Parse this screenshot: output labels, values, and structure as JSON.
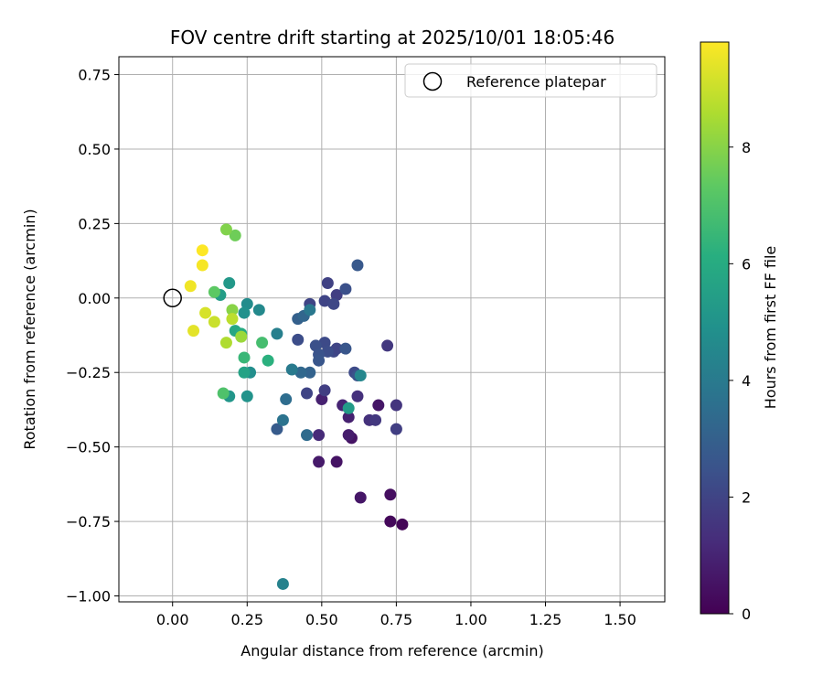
{
  "chart_data": {
    "type": "scatter",
    "title": "FOV centre drift starting at 2025/10/01 18:05:46",
    "xlabel": "Angular distance from reference (arcmin)",
    "ylabel": "Rotation from reference (arcmin)",
    "xlim": [
      -0.18,
      1.65
    ],
    "ylim": [
      -1.02,
      0.81
    ],
    "xticks": [
      0.0,
      0.25,
      0.5,
      0.75,
      1.0,
      1.25,
      1.5
    ],
    "xtick_labels": [
      "0.00",
      "0.25",
      "0.50",
      "0.75",
      "1.00",
      "1.25",
      "1.50"
    ],
    "yticks": [
      0.75,
      0.5,
      0.25,
      0.0,
      -0.25,
      -0.5,
      -0.75,
      -1.0
    ],
    "ytick_labels": [
      "0.75",
      "0.50",
      "0.25",
      "0.00",
      "−0.25",
      "−0.50",
      "−0.75",
      "−1.00"
    ],
    "grid": true,
    "legend": {
      "label": "Reference platepar",
      "placement": "top-right"
    },
    "reference_point": {
      "x": 0.0,
      "y": 0.0
    },
    "colorbar": {
      "label": "Hours from first FF file",
      "range": [
        0,
        9.8
      ],
      "ticks": [
        0,
        2,
        4,
        6,
        8
      ],
      "tick_labels": [
        "0",
        "2",
        "4",
        "6",
        "8"
      ],
      "colormap": "viridis"
    },
    "series": [
      {
        "name": "FOV centre drift",
        "points": [
          {
            "x": 0.77,
            "y": -0.76,
            "hours": 0.1
          },
          {
            "x": 0.73,
            "y": -0.75,
            "hours": 0.2
          },
          {
            "x": 0.73,
            "y": -0.66,
            "hours": 0.4
          },
          {
            "x": 0.63,
            "y": -0.67,
            "hours": 0.6
          },
          {
            "x": 0.55,
            "y": -0.55,
            "hours": 0.5
          },
          {
            "x": 0.49,
            "y": -0.55,
            "hours": 0.7
          },
          {
            "x": 0.6,
            "y": -0.47,
            "hours": 0.5
          },
          {
            "x": 0.59,
            "y": -0.46,
            "hours": 0.8
          },
          {
            "x": 0.69,
            "y": -0.36,
            "hours": 0.6
          },
          {
            "x": 0.59,
            "y": -0.4,
            "hours": 0.9
          },
          {
            "x": 0.57,
            "y": -0.36,
            "hours": 1.0
          },
          {
            "x": 0.5,
            "y": -0.34,
            "hours": 0.9
          },
          {
            "x": 0.49,
            "y": -0.46,
            "hours": 1.2
          },
          {
            "x": 0.62,
            "y": -0.33,
            "hours": 1.4
          },
          {
            "x": 0.66,
            "y": -0.41,
            "hours": 1.4
          },
          {
            "x": 0.68,
            "y": -0.41,
            "hours": 1.6
          },
          {
            "x": 0.75,
            "y": -0.36,
            "hours": 1.5
          },
          {
            "x": 0.75,
            "y": -0.44,
            "hours": 1.8
          },
          {
            "x": 0.72,
            "y": -0.16,
            "hours": 1.6
          },
          {
            "x": 0.51,
            "y": -0.31,
            "hours": 1.8
          },
          {
            "x": 0.45,
            "y": -0.32,
            "hours": 2.0
          },
          {
            "x": 0.52,
            "y": 0.05,
            "hours": 1.9
          },
          {
            "x": 0.55,
            "y": 0.01,
            "hours": 1.8
          },
          {
            "x": 0.51,
            "y": -0.01,
            "hours": 2.0
          },
          {
            "x": 0.54,
            "y": -0.02,
            "hours": 2.1
          },
          {
            "x": 0.46,
            "y": -0.02,
            "hours": 2.0
          },
          {
            "x": 0.51,
            "y": -0.15,
            "hours": 2.2
          },
          {
            "x": 0.54,
            "y": -0.18,
            "hours": 2.1
          },
          {
            "x": 0.55,
            "y": -0.17,
            "hours": 2.0
          },
          {
            "x": 0.52,
            "y": -0.18,
            "hours": 2.3
          },
          {
            "x": 0.48,
            "y": -0.16,
            "hours": 2.4
          },
          {
            "x": 0.49,
            "y": -0.19,
            "hours": 2.5
          },
          {
            "x": 0.49,
            "y": -0.21,
            "hours": 2.6
          },
          {
            "x": 0.42,
            "y": -0.14,
            "hours": 2.3
          },
          {
            "x": 0.58,
            "y": 0.03,
            "hours": 2.4
          },
          {
            "x": 0.62,
            "y": 0.11,
            "hours": 2.7
          },
          {
            "x": 0.58,
            "y": -0.17,
            "hours": 2.6
          },
          {
            "x": 0.61,
            "y": -0.25,
            "hours": 2.2
          },
          {
            "x": 0.62,
            "y": -0.26,
            "hours": 2.5
          },
          {
            "x": 0.35,
            "y": -0.44,
            "hours": 2.8
          },
          {
            "x": 0.42,
            "y": -0.07,
            "hours": 3.0
          },
          {
            "x": 0.44,
            "y": -0.06,
            "hours": 3.2
          },
          {
            "x": 0.46,
            "y": -0.25,
            "hours": 3.1
          },
          {
            "x": 0.43,
            "y": -0.25,
            "hours": 3.3
          },
          {
            "x": 0.45,
            "y": -0.46,
            "hours": 3.4
          },
          {
            "x": 0.38,
            "y": -0.34,
            "hours": 3.5
          },
          {
            "x": 0.37,
            "y": -0.41,
            "hours": 3.7
          },
          {
            "x": 0.4,
            "y": -0.24,
            "hours": 4.0
          },
          {
            "x": 0.46,
            "y": -0.04,
            "hours": 3.9
          },
          {
            "x": 0.35,
            "y": -0.12,
            "hours": 4.2
          },
          {
            "x": 0.37,
            "y": -0.96,
            "hours": 4.3
          },
          {
            "x": 0.63,
            "y": -0.26,
            "hours": 4.5
          },
          {
            "x": 0.59,
            "y": -0.37,
            "hours": 5.3
          },
          {
            "x": 0.29,
            "y": -0.04,
            "hours": 4.6
          },
          {
            "x": 0.25,
            "y": -0.02,
            "hours": 4.7
          },
          {
            "x": 0.24,
            "y": -0.05,
            "hours": 4.9
          },
          {
            "x": 0.26,
            "y": -0.25,
            "hours": 4.8
          },
          {
            "x": 0.25,
            "y": -0.33,
            "hours": 5.0
          },
          {
            "x": 0.19,
            "y": -0.33,
            "hours": 5.1
          },
          {
            "x": 0.19,
            "y": 0.05,
            "hours": 5.2
          },
          {
            "x": 0.16,
            "y": 0.01,
            "hours": 5.4
          },
          {
            "x": 0.24,
            "y": -0.25,
            "hours": 5.6
          },
          {
            "x": 0.21,
            "y": -0.11,
            "hours": 5.8
          },
          {
            "x": 0.23,
            "y": -0.12,
            "hours": 6.0
          },
          {
            "x": 0.32,
            "y": -0.21,
            "hours": 6.2
          },
          {
            "x": 0.24,
            "y": -0.2,
            "hours": 6.5
          },
          {
            "x": 0.3,
            "y": -0.15,
            "hours": 6.8
          },
          {
            "x": 0.17,
            "y": -0.32,
            "hours": 7.0
          },
          {
            "x": 0.14,
            "y": 0.02,
            "hours": 7.3
          },
          {
            "x": 0.21,
            "y": 0.21,
            "hours": 7.6
          },
          {
            "x": 0.18,
            "y": 0.23,
            "hours": 7.9
          },
          {
            "x": 0.2,
            "y": -0.04,
            "hours": 8.0
          },
          {
            "x": 0.23,
            "y": -0.13,
            "hours": 8.3
          },
          {
            "x": 0.18,
            "y": -0.15,
            "hours": 8.6
          },
          {
            "x": 0.2,
            "y": -0.07,
            "hours": 8.8
          },
          {
            "x": 0.14,
            "y": -0.08,
            "hours": 9.0
          },
          {
            "x": 0.11,
            "y": -0.05,
            "hours": 9.2
          },
          {
            "x": 0.07,
            "y": -0.11,
            "hours": 9.4
          },
          {
            "x": 0.06,
            "y": 0.04,
            "hours": 9.6
          },
          {
            "x": 0.1,
            "y": 0.11,
            "hours": 9.7
          },
          {
            "x": 0.1,
            "y": 0.16,
            "hours": 9.8
          }
        ]
      }
    ]
  }
}
